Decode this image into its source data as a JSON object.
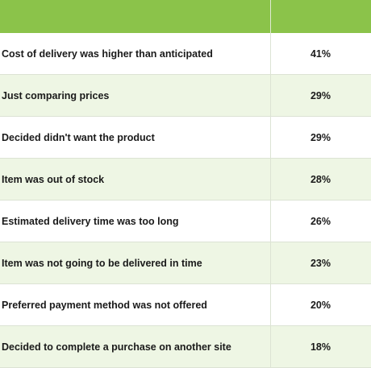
{
  "table": {
    "headers": [
      "",
      ""
    ],
    "rows": [
      {
        "reason": "Cost of delivery was higher than anticipated",
        "percent": "41%"
      },
      {
        "reason": "Just comparing prices",
        "percent": "29%"
      },
      {
        "reason": "Decided didn't want the product",
        "percent": "29%"
      },
      {
        "reason": "Item was out of stock",
        "percent": "28%"
      },
      {
        "reason": "Estimated delivery time was too long",
        "percent": "26%"
      },
      {
        "reason": "Item was not going to be delivered in time",
        "percent": "23%"
      },
      {
        "reason": "Preferred payment method was not offered",
        "percent": "20%"
      },
      {
        "reason": "Decided to complete a purchase on another site",
        "percent": "18%"
      }
    ]
  },
  "colors": {
    "header_bg": "#8bc34a",
    "row_alt_bg": "#eef6e4",
    "row_bg": "#ffffff"
  },
  "chart_data": {
    "type": "table",
    "columns": [
      "",
      ""
    ],
    "categories": [
      "Cost of delivery was higher than anticipated",
      "Just comparing prices",
      "Decided didn't want the product",
      "Item was out of stock",
      "Estimated delivery time was too long",
      "Item was not going to be delivered in time",
      "Preferred payment method was not offered",
      "Decided to complete a purchase on another site"
    ],
    "values": [
      41,
      29,
      29,
      28,
      26,
      23,
      20,
      18
    ],
    "unit": "%"
  }
}
